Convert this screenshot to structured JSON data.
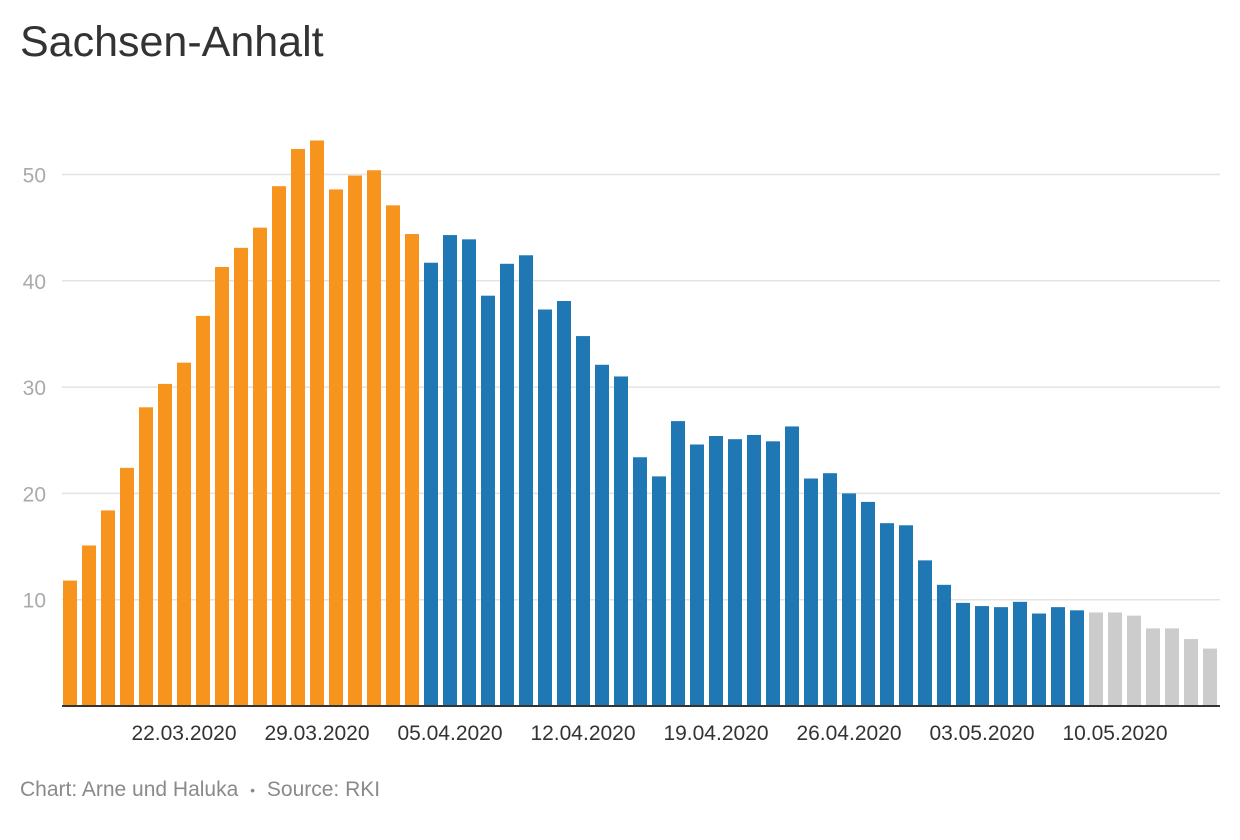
{
  "title": "Sachsen-Anhalt",
  "footer": {
    "chart_credit": "Chart: Arne und Haluka",
    "separator": "•",
    "source": "Source: RKI"
  },
  "colors": {
    "orange": "#f7941d",
    "blue": "#1f77b4",
    "gray": "#cccccc",
    "grid": "#e3e3e3",
    "axis": "#333333"
  },
  "chart_data": {
    "type": "bar",
    "x_start": "16.03.2020",
    "x_end": "16.05.2020",
    "x_tick_labels": [
      "22.03.2020",
      "29.03.2020",
      "05.04.2020",
      "12.04.2020",
      "19.04.2020",
      "26.04.2020",
      "03.05.2020",
      "10.05.2020"
    ],
    "y_ticks": [
      10,
      20,
      30,
      40,
      50
    ],
    "ylim": [
      0,
      55
    ],
    "grid": true,
    "values": [
      11.8,
      15.1,
      18.4,
      22.4,
      28.1,
      30.3,
      32.3,
      36.7,
      41.3,
      43.1,
      45.0,
      48.9,
      52.4,
      53.2,
      48.6,
      49.9,
      50.4,
      47.1,
      44.4,
      41.7,
      44.3,
      43.9,
      38.6,
      41.6,
      42.4,
      37.3,
      38.1,
      34.8,
      32.1,
      31.0,
      23.4,
      21.6,
      26.8,
      24.6,
      25.4,
      25.1,
      25.5,
      24.9,
      26.3,
      21.4,
      21.9,
      20.0,
      19.2,
      17.2,
      17.0,
      13.7,
      11.4,
      9.7,
      9.4,
      9.3,
      9.8,
      8.7,
      9.3,
      9.0,
      8.8,
      8.8,
      8.5,
      7.3,
      7.3,
      6.3,
      5.4
    ],
    "colors": [
      "orange",
      "orange",
      "orange",
      "orange",
      "orange",
      "orange",
      "orange",
      "orange",
      "orange",
      "orange",
      "orange",
      "orange",
      "orange",
      "orange",
      "orange",
      "orange",
      "orange",
      "orange",
      "orange",
      "blue",
      "blue",
      "blue",
      "blue",
      "blue",
      "blue",
      "blue",
      "blue",
      "blue",
      "blue",
      "blue",
      "blue",
      "blue",
      "blue",
      "blue",
      "blue",
      "blue",
      "blue",
      "blue",
      "blue",
      "blue",
      "blue",
      "blue",
      "blue",
      "blue",
      "blue",
      "blue",
      "blue",
      "blue",
      "blue",
      "blue",
      "blue",
      "blue",
      "blue",
      "blue",
      "gray",
      "gray",
      "gray",
      "gray",
      "gray",
      "gray",
      "gray"
    ]
  }
}
